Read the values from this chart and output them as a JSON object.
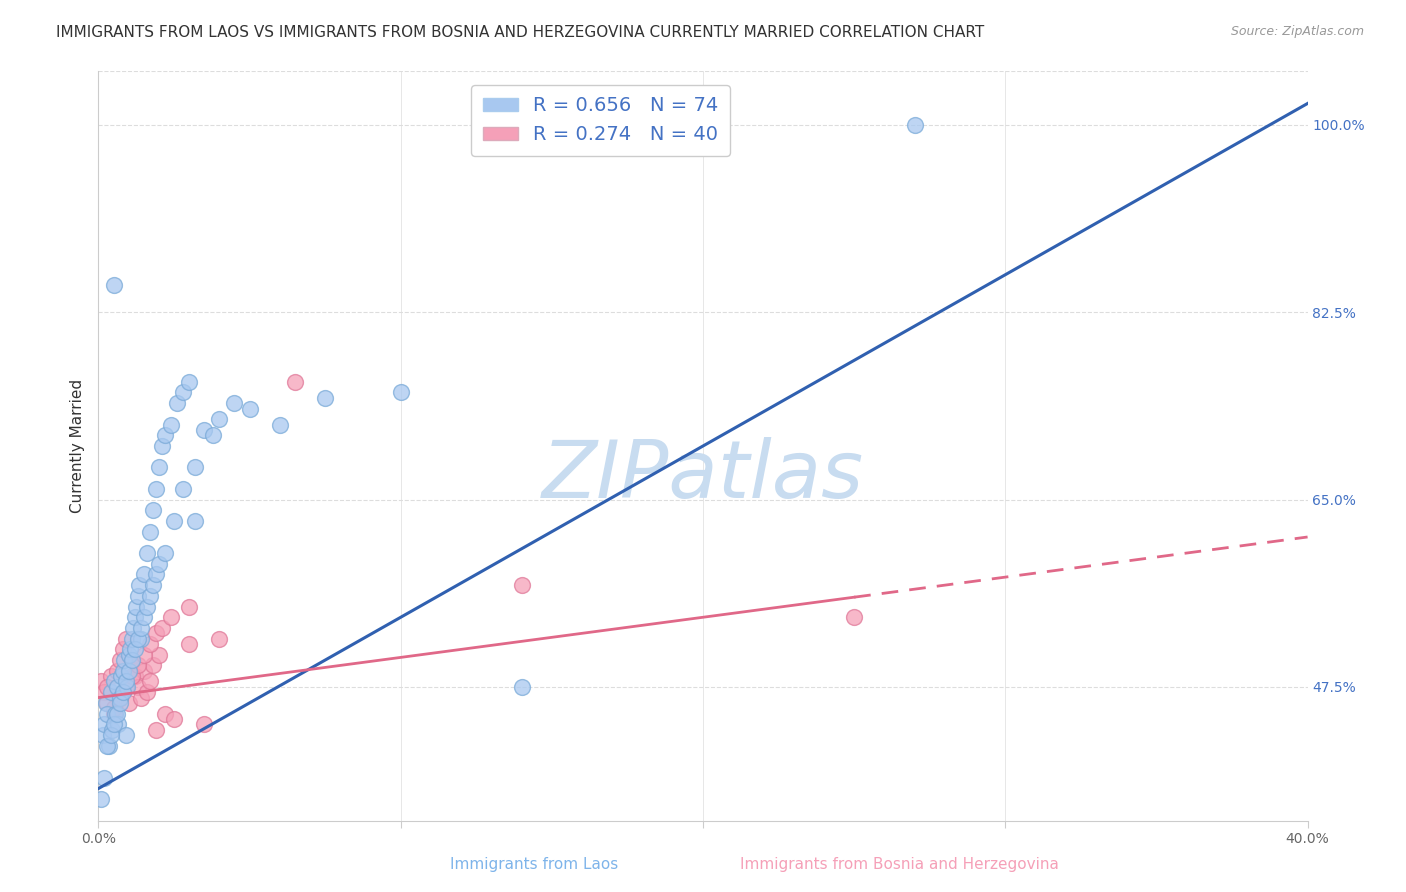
{
  "title": "IMMIGRANTS FROM LAOS VS IMMIGRANTS FROM BOSNIA AND HERZEGOVINA CURRENTLY MARRIED CORRELATION CHART",
  "source": "Source: ZipAtlas.com",
  "xlabel_left": "Immigrants from Laos",
  "xlabel_right": "Immigrants from Bosnia and Herzegovina",
  "ylabel": "Currently Married",
  "xlim": [
    0.0,
    40.0
  ],
  "ylim": [
    35.0,
    105.0
  ],
  "right_yticks": [
    47.5,
    65.0,
    82.5,
    100.0
  ],
  "watermark": "ZIPatlas",
  "series1": {
    "label": "Immigrants from Laos",
    "R": 0.656,
    "N": 74,
    "color": "#A8C8F0",
    "edge_color": "#7AAAD8",
    "line_color": "#3060B0",
    "line_style": "solid",
    "trend_x0": 0.0,
    "trend_y0": 38.0,
    "trend_x1": 40.0,
    "trend_y1": 102.0,
    "x": [
      0.1,
      0.15,
      0.2,
      0.25,
      0.3,
      0.35,
      0.4,
      0.45,
      0.5,
      0.55,
      0.6,
      0.65,
      0.7,
      0.75,
      0.8,
      0.85,
      0.9,
      0.95,
      1.0,
      1.05,
      1.1,
      1.15,
      1.2,
      1.25,
      1.3,
      1.35,
      1.4,
      1.5,
      1.6,
      1.7,
      1.8,
      1.9,
      2.0,
      2.1,
      2.2,
      2.4,
      2.6,
      2.8,
      3.0,
      3.2,
      3.5,
      4.0,
      4.5,
      5.0,
      6.0,
      7.5,
      10.0,
      14.0,
      0.2,
      0.3,
      0.4,
      0.5,
      0.6,
      0.7,
      0.8,
      0.9,
      1.0,
      1.1,
      1.2,
      1.3,
      1.4,
      1.5,
      1.6,
      1.7,
      1.8,
      1.9,
      2.0,
      2.2,
      2.5,
      2.8,
      3.2,
      3.8,
      27.0,
      0.5
    ],
    "y": [
      37.0,
      43.0,
      44.0,
      46.0,
      45.0,
      42.0,
      47.0,
      43.5,
      48.0,
      45.0,
      47.5,
      44.0,
      46.5,
      48.5,
      49.0,
      50.0,
      43.0,
      47.5,
      50.5,
      51.0,
      52.0,
      53.0,
      54.0,
      55.0,
      56.0,
      57.0,
      52.0,
      58.0,
      60.0,
      62.0,
      64.0,
      66.0,
      68.0,
      70.0,
      71.0,
      72.0,
      74.0,
      75.0,
      76.0,
      63.0,
      71.5,
      72.5,
      74.0,
      73.5,
      72.0,
      74.5,
      75.0,
      47.5,
      39.0,
      42.0,
      43.0,
      44.0,
      45.0,
      46.0,
      47.0,
      48.0,
      49.0,
      50.0,
      51.0,
      52.0,
      53.0,
      54.0,
      55.0,
      56.0,
      57.0,
      58.0,
      59.0,
      60.0,
      63.0,
      66.0,
      68.0,
      71.0,
      100.0,
      85.0
    ]
  },
  "series2": {
    "label": "Immigrants from Bosnia and Herzegovina",
    "R": 0.274,
    "N": 40,
    "color": "#F5A0B8",
    "edge_color": "#E07898",
    "line_color": "#E06888",
    "line_style": "dashed",
    "trend_x0": 0.0,
    "trend_y0": 46.5,
    "trend_x1": 40.0,
    "trend_y1": 61.5,
    "x": [
      0.1,
      0.2,
      0.3,
      0.4,
      0.5,
      0.6,
      0.7,
      0.8,
      0.9,
      1.0,
      1.1,
      1.2,
      1.3,
      1.4,
      1.5,
      1.6,
      1.7,
      1.8,
      1.9,
      2.0,
      2.2,
      2.5,
      3.0,
      3.5,
      0.3,
      0.5,
      0.7,
      0.9,
      1.1,
      1.3,
      1.5,
      1.7,
      1.9,
      2.1,
      2.4,
      3.0,
      4.0,
      6.5,
      14.0,
      25.0
    ],
    "y": [
      48.0,
      47.0,
      46.0,
      48.5,
      45.0,
      49.0,
      50.0,
      51.0,
      52.0,
      46.0,
      50.0,
      48.5,
      47.5,
      46.5,
      49.0,
      47.0,
      48.0,
      49.5,
      43.5,
      50.5,
      45.0,
      44.5,
      51.5,
      44.0,
      47.5,
      45.5,
      46.5,
      47.5,
      48.5,
      49.5,
      50.5,
      51.5,
      52.5,
      53.0,
      54.0,
      55.0,
      52.0,
      76.0,
      57.0,
      54.0
    ]
  },
  "grid_color": "#DDDDDD",
  "background_color": "#FFFFFF",
  "title_fontsize": 11,
  "axis_label_fontsize": 11,
  "tick_fontsize": 10,
  "legend_fontsize": 14,
  "watermark_fontsize": 58,
  "watermark_color": "#C8DCF0",
  "source_fontsize": 9
}
